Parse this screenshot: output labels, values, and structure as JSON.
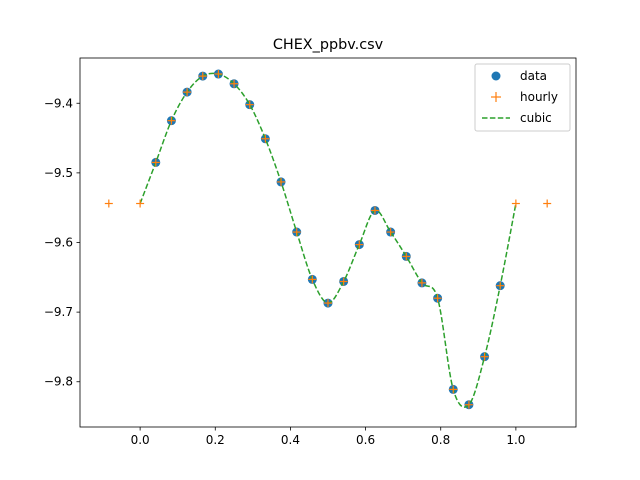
{
  "chart_data": {
    "type": "line",
    "title": "CHEX_ppbv.csv",
    "xlabel": "",
    "ylabel": "",
    "xlim": [
      -0.16,
      1.16
    ],
    "ylim": [
      -9.865,
      -9.335
    ],
    "x_ticks": [
      0.0,
      0.2,
      0.4,
      0.6,
      0.8,
      1.0
    ],
    "x_tick_labels": [
      "0.0",
      "0.2",
      "0.4",
      "0.6",
      "0.8",
      "1.0"
    ],
    "y_ticks": [
      -9.8,
      -9.7,
      -9.6,
      -9.5,
      -9.4
    ],
    "y_tick_labels": [
      "−9.8",
      "−9.7",
      "−9.6",
      "−9.5",
      "−9.4"
    ],
    "grid": false,
    "legend_position": "top-right",
    "series": [
      {
        "name": "data",
        "style": "marker-circle",
        "color": "#1f77b4",
        "x": [
          0.0417,
          0.0833,
          0.125,
          0.1667,
          0.2083,
          0.25,
          0.2917,
          0.3333,
          0.375,
          0.4167,
          0.4583,
          0.5,
          0.5417,
          0.5833,
          0.625,
          0.6667,
          0.7083,
          0.75,
          0.7917,
          0.8333,
          0.875,
          0.9167,
          0.9583
        ],
        "y": [
          -9.485,
          -9.425,
          -9.384,
          -9.361,
          -9.358,
          -9.372,
          -9.402,
          -9.451,
          -9.513,
          -9.585,
          -9.653,
          -9.687,
          -9.656,
          -9.603,
          -9.554,
          -9.585,
          -9.62,
          -9.658,
          -9.68,
          -9.811,
          -9.833,
          -9.764,
          -9.662
        ]
      },
      {
        "name": "hourly",
        "style": "marker-plus",
        "color": "#ff7f0e",
        "x": [
          -0.0833,
          0.0,
          0.0417,
          0.0833,
          0.125,
          0.1667,
          0.2083,
          0.25,
          0.2917,
          0.3333,
          0.375,
          0.4167,
          0.4583,
          0.5,
          0.5417,
          0.5833,
          0.625,
          0.6667,
          0.7083,
          0.75,
          0.7917,
          0.8333,
          0.875,
          0.9167,
          0.9583,
          1.0,
          1.0833
        ],
        "y": [
          -9.544,
          -9.544,
          -9.485,
          -9.425,
          -9.384,
          -9.361,
          -9.358,
          -9.372,
          -9.402,
          -9.451,
          -9.513,
          -9.585,
          -9.653,
          -9.687,
          -9.656,
          -9.603,
          -9.554,
          -9.585,
          -9.62,
          -9.658,
          -9.68,
          -9.811,
          -9.833,
          -9.764,
          -9.662,
          -9.544,
          -9.544
        ]
      },
      {
        "name": "cubic",
        "style": "dashed-line",
        "color": "#2ca02c",
        "x": [
          0.0,
          0.0417,
          0.0833,
          0.125,
          0.1667,
          0.2083,
          0.25,
          0.2917,
          0.3333,
          0.375,
          0.4167,
          0.4583,
          0.5,
          0.5417,
          0.5833,
          0.625,
          0.6667,
          0.7083,
          0.75,
          0.7917,
          0.8333,
          0.875,
          0.9167,
          0.9583,
          1.0
        ],
        "y": [
          -9.544,
          -9.485,
          -9.425,
          -9.384,
          -9.361,
          -9.358,
          -9.372,
          -9.402,
          -9.451,
          -9.513,
          -9.585,
          -9.653,
          -9.687,
          -9.656,
          -9.603,
          -9.554,
          -9.585,
          -9.62,
          -9.658,
          -9.68,
          -9.811,
          -9.833,
          -9.764,
          -9.662,
          -9.544
        ]
      }
    ]
  }
}
